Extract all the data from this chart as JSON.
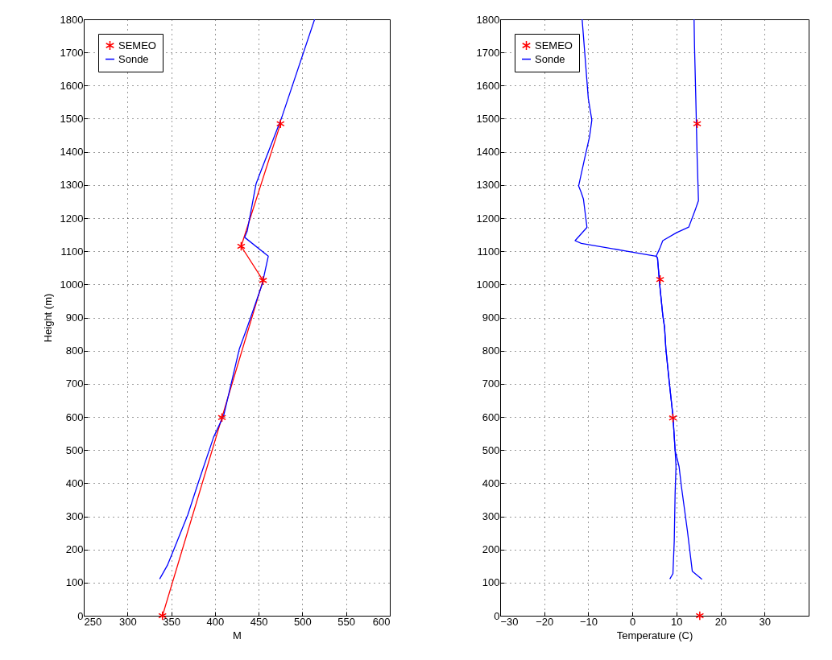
{
  "chart_data": [
    {
      "type": "line",
      "xlabel": "M",
      "ylabel": "Height (m)",
      "xlim": [
        250,
        600
      ],
      "xticks": [
        250,
        300,
        350,
        400,
        450,
        500,
        550,
        600
      ],
      "ylim": [
        0,
        1800
      ],
      "yticks": [
        0,
        100,
        200,
        300,
        400,
        500,
        600,
        700,
        800,
        900,
        1000,
        1100,
        1200,
        1300,
        1400,
        1500,
        1600,
        1700,
        1800
      ],
      "grid": true,
      "legend": "top left",
      "series": [
        {
          "name": "SEMEO",
          "color": "#ff0000",
          "marker": "cross",
          "x": [
            340,
            408,
            455,
            430,
            475
          ],
          "values": [
            0,
            598,
            1012,
            1115,
            1485
          ]
        },
        {
          "name": "Sonde",
          "color": "#0000ff",
          "marker": "none",
          "x": [
            336.8,
            345.6,
            353,
            369,
            381,
            398.5,
            410,
            428,
            437,
            454,
            461,
            434,
            437,
            447,
            451,
            476,
            514
          ],
          "values": [
            111,
            152,
            200,
            305,
            402,
            539,
            604,
            806,
            871,
            1000,
            1085,
            1142,
            1162,
            1303,
            1331,
            1501,
            1800
          ]
        }
      ]
    },
    {
      "type": "line",
      "xlabel": "Temperature (C)",
      "xlim": [
        -30,
        40
      ],
      "xticks": [
        -30,
        -20,
        -10,
        0,
        10,
        20,
        30
      ],
      "ylim": [
        0,
        1800
      ],
      "yticks": [
        0,
        100,
        200,
        300,
        400,
        500,
        600,
        700,
        800,
        900,
        1000,
        1100,
        1200,
        1300,
        1400,
        1500,
        1600,
        1700,
        1800
      ],
      "grid": true,
      "legend": "top left",
      "series": [
        {
          "name": "SEMEO",
          "type": "scatter",
          "color": "#ff0000",
          "marker": "cross",
          "x": [
            15.3,
            9.2,
            6.3,
            14.7
          ],
          "values": [
            0,
            597,
            1015,
            1485
          ]
        },
        {
          "name": "Sonde",
          "color": "#0000ff",
          "marker": "none",
          "x": [
            15.8,
            13.6,
            12.5,
            11.1,
            10.6,
            9.7,
            9.2,
            8.4,
            7.6,
            7.3,
            6.9,
            6.2,
            5.7,
            5.4,
            6.2,
            6.9,
            10.0,
            12.8,
            14.4,
            15.0,
            14.7,
            14.4,
            14.1,
            14.0
          ],
          "values": [
            110,
            134,
            255,
            393,
            450,
            499,
            604,
            701,
            806,
            871,
            907,
            1000,
            1080,
            1085,
            1108,
            1132,
            1156,
            1173,
            1230,
            1253,
            1383,
            1560,
            1720,
            1800
          ]
        },
        {
          "color": "#0000ff",
          "marker": "none",
          "x": [
            8.5,
            9.2,
            9.5,
            9.7,
            9.9,
            9.7,
            9.2,
            8.4,
            7.6,
            7.3,
            6.9,
            6.2,
            5.7,
            5.4,
            -0.7,
            -11.6,
            -13.0,
            -10.3,
            -11.1,
            -11.6,
            -12.2,
            -10.8,
            -9.7,
            -9.2,
            -10.0,
            -11.4
          ],
          "values": [
            111,
            127,
            224,
            370,
            450,
            499,
            604,
            701,
            806,
            871,
            907,
            1000,
            1080,
            1085,
            1099,
            1124,
            1132,
            1172,
            1257,
            1277,
            1297,
            1382,
            1447,
            1496,
            1561,
            1800
          ]
        }
      ]
    }
  ]
}
